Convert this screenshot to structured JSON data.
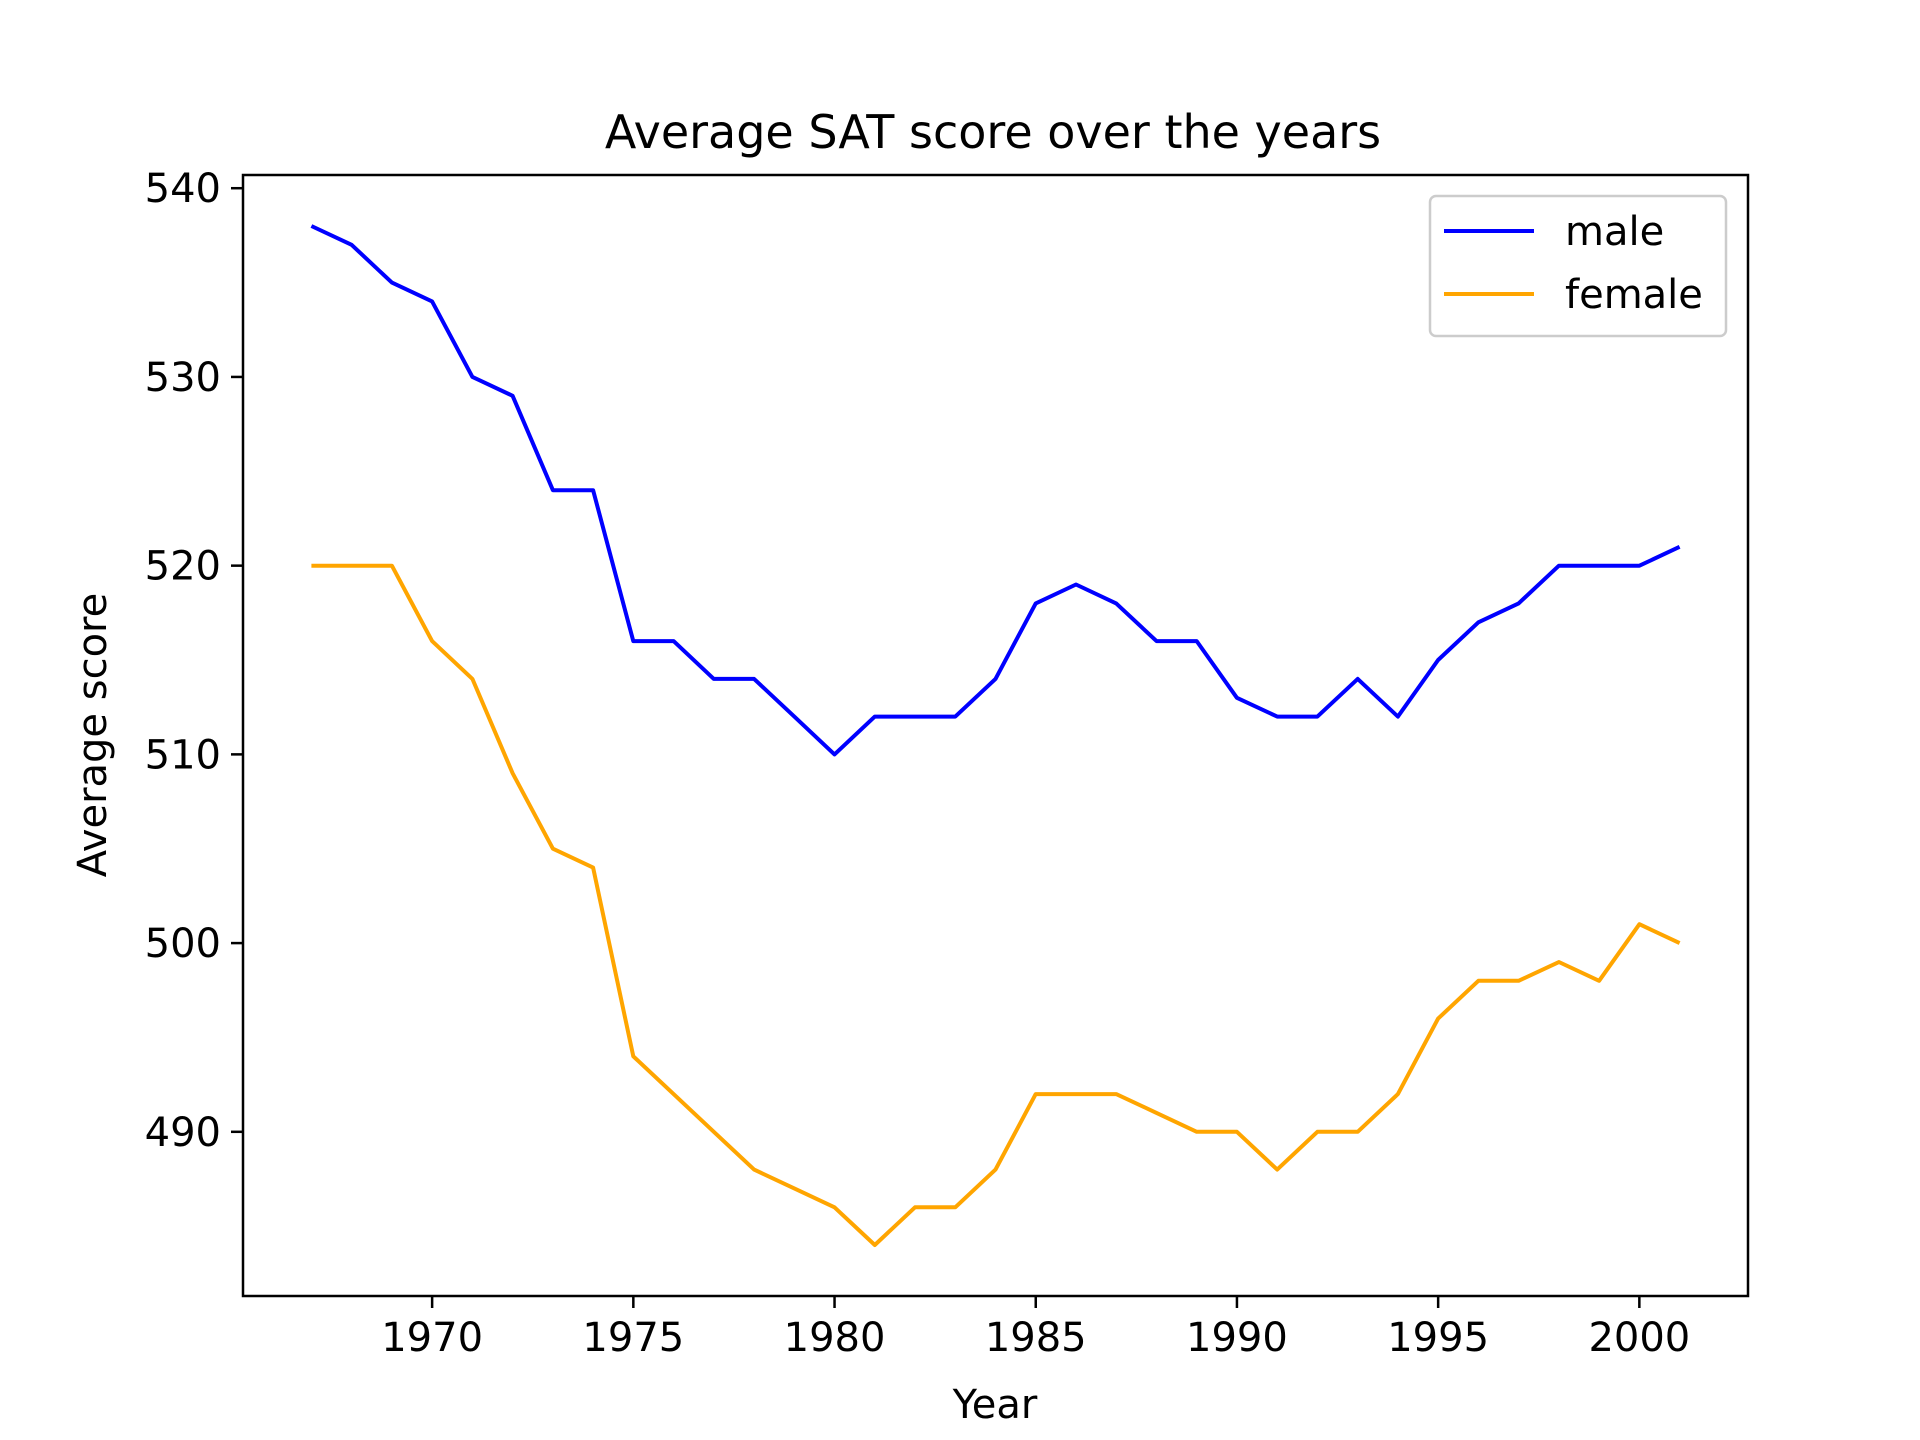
{
  "chart_data": {
    "type": "line",
    "title": "Average SAT score over the years",
    "xlabel": "Year",
    "ylabel": "Average score",
    "x": [
      1967,
      1968,
      1969,
      1970,
      1971,
      1972,
      1973,
      1974,
      1975,
      1976,
      1977,
      1978,
      1979,
      1980,
      1981,
      1982,
      1983,
      1984,
      1985,
      1986,
      1987,
      1988,
      1989,
      1990,
      1991,
      1992,
      1993,
      1994,
      1995,
      1996,
      1997,
      1998,
      1999,
      2000,
      2001
    ],
    "series": [
      {
        "name": "male",
        "color": "#0000ff",
        "values": [
          538,
          537,
          535,
          534,
          530,
          529,
          524,
          524,
          516,
          516,
          514,
          514,
          512,
          510,
          512,
          512,
          512,
          514,
          518,
          519,
          518,
          516,
          516,
          513,
          512,
          512,
          514,
          512,
          515,
          517,
          518,
          520,
          520,
          520,
          521
        ]
      },
      {
        "name": "female",
        "color": "#ffa500",
        "values": [
          520,
          520,
          520,
          516,
          514,
          509,
          505,
          504,
          494,
          492,
          490,
          488,
          487,
          486,
          484,
          486,
          486,
          488,
          492,
          492,
          492,
          491,
          490,
          490,
          488,
          490,
          490,
          492,
          496,
          498,
          498,
          499,
          498,
          501,
          500
        ]
      }
    ],
    "xlim": [
      1965.3,
      2002.7
    ],
    "ylim": [
      481.3,
      540.7
    ],
    "xticks": [
      1970,
      1975,
      1980,
      1985,
      1990,
      1995,
      2000
    ],
    "yticks": [
      490,
      500,
      510,
      520,
      530,
      540
    ],
    "grid": false,
    "legend_position": "upper right"
  }
}
